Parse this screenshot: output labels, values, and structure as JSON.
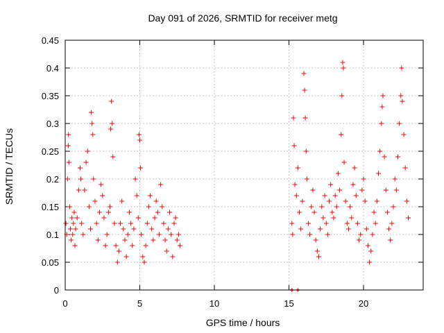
{
  "chart_data": {
    "type": "scatter",
    "title": "Day 091 of 2026, SRMTID for receiver metg",
    "xlabel": "GPS time / hours",
    "ylabel": "SRMTID / TECUs",
    "xlim": [
      0,
      24
    ],
    "ylim": [
      0,
      0.45
    ],
    "xticks": [
      0,
      5,
      10,
      15,
      20
    ],
    "yticks": [
      0,
      0.05,
      0.1,
      0.15,
      0.2,
      0.25,
      0.3,
      0.35,
      0.4,
      0.45
    ],
    "xtick_labels": [
      "0",
      "5",
      "10",
      "15",
      "20"
    ],
    "ytick_labels": [
      "0",
      "0.05",
      "0.1",
      "0.15",
      "0.2",
      "0.25",
      "0.3",
      "0.35",
      "0.4",
      "0.45"
    ],
    "grid": true,
    "marker": "+",
    "marker_color": "#ff0000",
    "series": [
      {
        "name": "SRMTID",
        "points": [
          [
            0.05,
            0.12
          ],
          [
            0.1,
            0.1
          ],
          [
            0.15,
            0.2
          ],
          [
            0.2,
            0.26
          ],
          [
            0.22,
            0.28
          ],
          [
            0.25,
            0.23
          ],
          [
            0.3,
            0.15
          ],
          [
            0.35,
            0.11
          ],
          [
            0.4,
            0.09
          ],
          [
            0.45,
            0.13
          ],
          [
            0.5,
            0.1
          ],
          [
            0.55,
            0.12
          ],
          [
            0.6,
            0.14
          ],
          [
            0.65,
            0.08
          ],
          [
            0.7,
            0.11
          ],
          [
            0.8,
            0.13
          ],
          [
            0.9,
            0.18
          ],
          [
            1.0,
            0.22
          ],
          [
            1.05,
            0.2
          ],
          [
            1.1,
            0.12
          ],
          [
            1.2,
            0.1
          ],
          [
            1.3,
            0.18
          ],
          [
            1.4,
            0.23
          ],
          [
            1.5,
            0.25
          ],
          [
            1.6,
            0.15
          ],
          [
            1.7,
            0.11
          ],
          [
            1.75,
            0.32
          ],
          [
            1.8,
            0.3
          ],
          [
            1.85,
            0.28
          ],
          [
            1.9,
            0.2
          ],
          [
            2.0,
            0.16
          ],
          [
            2.1,
            0.12
          ],
          [
            2.2,
            0.09
          ],
          [
            2.3,
            0.14
          ],
          [
            2.4,
            0.19
          ],
          [
            2.5,
            0.17
          ],
          [
            2.6,
            0.13
          ],
          [
            2.7,
            0.08
          ],
          [
            2.8,
            0.1
          ],
          [
            2.9,
            0.14
          ],
          [
            3.0,
            0.15
          ],
          [
            3.05,
            0.29
          ],
          [
            3.1,
            0.34
          ],
          [
            3.15,
            0.3
          ],
          [
            3.2,
            0.24
          ],
          [
            3.3,
            0.12
          ],
          [
            3.4,
            0.08
          ],
          [
            3.5,
            0.05
          ],
          [
            3.6,
            0.07
          ],
          [
            3.7,
            0.12
          ],
          [
            3.8,
            0.16
          ],
          [
            3.9,
            0.11
          ],
          [
            4.0,
            0.09
          ],
          [
            4.1,
            0.06
          ],
          [
            4.2,
            0.1
          ],
          [
            4.3,
            0.14
          ],
          [
            4.4,
            0.12
          ],
          [
            4.5,
            0.08
          ],
          [
            4.6,
            0.11
          ],
          [
            4.7,
            0.2
          ],
          [
            4.8,
            0.17
          ],
          [
            4.9,
            0.13
          ],
          [
            4.95,
            0.28
          ],
          [
            5.0,
            0.27
          ],
          [
            5.05,
            0.22
          ],
          [
            5.1,
            0.1
          ],
          [
            5.2,
            0.06
          ],
          [
            5.3,
            0.05
          ],
          [
            5.4,
            0.08
          ],
          [
            5.5,
            0.12
          ],
          [
            5.6,
            0.15
          ],
          [
            5.7,
            0.17
          ],
          [
            5.8,
            0.11
          ],
          [
            5.9,
            0.09
          ],
          [
            6.0,
            0.13
          ],
          [
            6.1,
            0.16
          ],
          [
            6.2,
            0.14
          ],
          [
            6.3,
            0.1
          ],
          [
            6.4,
            0.19
          ],
          [
            6.5,
            0.15
          ],
          [
            6.6,
            0.12
          ],
          [
            6.7,
            0.09
          ],
          [
            6.8,
            0.07
          ],
          [
            6.9,
            0.11
          ],
          [
            7.0,
            0.14
          ],
          [
            7.1,
            0.1
          ],
          [
            7.2,
            0.06
          ],
          [
            7.3,
            0.12
          ],
          [
            7.4,
            0.13
          ],
          [
            7.5,
            0.09
          ],
          [
            7.6,
            0.1
          ],
          [
            7.7,
            0.08
          ],
          [
            15.2,
            0.12
          ],
          [
            15.25,
            0.1
          ],
          [
            15.3,
            0.31
          ],
          [
            15.35,
            0.26
          ],
          [
            15.4,
            0.19
          ],
          [
            15.5,
            0.17
          ],
          [
            15.6,
            0.22
          ],
          [
            15.7,
            0.14
          ],
          [
            15.8,
            0.11
          ],
          [
            15.9,
            0.16
          ],
          [
            16.0,
            0.39
          ],
          [
            16.05,
            0.36
          ],
          [
            16.1,
            0.31
          ],
          [
            16.15,
            0.25
          ],
          [
            16.2,
            0.2
          ],
          [
            16.3,
            0.12
          ],
          [
            16.4,
            0.1
          ],
          [
            16.5,
            0.15
          ],
          [
            16.6,
            0.18
          ],
          [
            16.7,
            0.14
          ],
          [
            16.8,
            0.09
          ],
          [
            16.9,
            0.07
          ],
          [
            17.0,
            0.06
          ],
          [
            17.1,
            0.11
          ],
          [
            17.2,
            0.15
          ],
          [
            17.3,
            0.13
          ],
          [
            17.4,
            0.17
          ],
          [
            17.5,
            0.12
          ],
          [
            17.6,
            0.1
          ],
          [
            17.7,
            0.16
          ],
          [
            17.8,
            0.19
          ],
          [
            17.9,
            0.14
          ],
          [
            18.0,
            0.13
          ],
          [
            18.1,
            0.17
          ],
          [
            18.2,
            0.15
          ],
          [
            18.3,
            0.21
          ],
          [
            18.4,
            0.18
          ],
          [
            18.5,
            0.28
          ],
          [
            18.55,
            0.35
          ],
          [
            18.6,
            0.41
          ],
          [
            18.65,
            0.4
          ],
          [
            18.7,
            0.23
          ],
          [
            18.8,
            0.16
          ],
          [
            18.9,
            0.12
          ],
          [
            19.0,
            0.11
          ],
          [
            19.1,
            0.15
          ],
          [
            19.2,
            0.13
          ],
          [
            19.3,
            0.19
          ],
          [
            19.4,
            0.22
          ],
          [
            19.5,
            0.17
          ],
          [
            19.6,
            0.12
          ],
          [
            19.7,
            0.09
          ],
          [
            19.8,
            0.1
          ],
          [
            19.9,
            0.18
          ],
          [
            20.0,
            0.2
          ],
          [
            20.1,
            0.16
          ],
          [
            20.2,
            0.11
          ],
          [
            20.3,
            0.08
          ],
          [
            20.4,
            0.05
          ],
          [
            20.5,
            0.07
          ],
          [
            20.6,
            0.1
          ],
          [
            20.7,
            0.14
          ],
          [
            20.8,
            0.12
          ],
          [
            20.9,
            0.16
          ],
          [
            21.0,
            0.21
          ],
          [
            21.1,
            0.25
          ],
          [
            21.2,
            0.3
          ],
          [
            21.25,
            0.33
          ],
          [
            21.3,
            0.35
          ],
          [
            21.4,
            0.24
          ],
          [
            21.5,
            0.18
          ],
          [
            21.6,
            0.14
          ],
          [
            21.7,
            0.11
          ],
          [
            21.8,
            0.09
          ],
          [
            21.9,
            0.12
          ],
          [
            22.0,
            0.15
          ],
          [
            22.1,
            0.2
          ],
          [
            22.2,
            0.18
          ],
          [
            22.3,
            0.24
          ],
          [
            22.4,
            0.3
          ],
          [
            22.5,
            0.35
          ],
          [
            22.55,
            0.4
          ],
          [
            22.6,
            0.34
          ],
          [
            22.7,
            0.28
          ],
          [
            22.8,
            0.22
          ],
          [
            22.9,
            0.16
          ],
          [
            23.0,
            0.13
          ]
        ]
      }
    ],
    "gap_markers": [
      15.2,
      15.6
    ]
  }
}
